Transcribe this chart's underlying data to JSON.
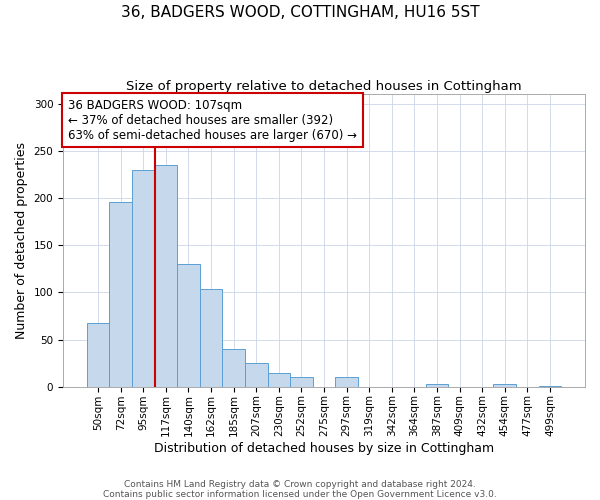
{
  "title": "36, BADGERS WOOD, COTTINGHAM, HU16 5ST",
  "subtitle": "Size of property relative to detached houses in Cottingham",
  "xlabel": "Distribution of detached houses by size in Cottingham",
  "ylabel": "Number of detached properties",
  "bar_labels": [
    "50sqm",
    "72sqm",
    "95sqm",
    "117sqm",
    "140sqm",
    "162sqm",
    "185sqm",
    "207sqm",
    "230sqm",
    "252sqm",
    "275sqm",
    "297sqm",
    "319sqm",
    "342sqm",
    "364sqm",
    "387sqm",
    "409sqm",
    "432sqm",
    "454sqm",
    "477sqm",
    "499sqm"
  ],
  "bar_values": [
    68,
    196,
    230,
    235,
    130,
    104,
    40,
    25,
    14,
    10,
    0,
    10,
    0,
    0,
    0,
    3,
    0,
    0,
    3,
    0,
    1
  ],
  "bar_color": "#c5d8ec",
  "bar_edge_color": "#5a9fd4",
  "vline_color": "#cc0000",
  "annotation_title": "36 BADGERS WOOD: 107sqm",
  "annotation_line1": "← 37% of detached houses are smaller (392)",
  "annotation_line2": "63% of semi-detached houses are larger (670) →",
  "annotation_box_color": "#ffffff",
  "annotation_box_edge": "#cc0000",
  "ylim": [
    0,
    310
  ],
  "yticks": [
    0,
    50,
    100,
    150,
    200,
    250,
    300
  ],
  "footer1": "Contains HM Land Registry data © Crown copyright and database right 2024.",
  "footer2": "Contains public sector information licensed under the Open Government Licence v3.0.",
  "title_fontsize": 11,
  "subtitle_fontsize": 9.5,
  "axis_label_fontsize": 9,
  "tick_fontsize": 7.5,
  "annotation_fontsize": 8.5,
  "footer_fontsize": 6.5
}
